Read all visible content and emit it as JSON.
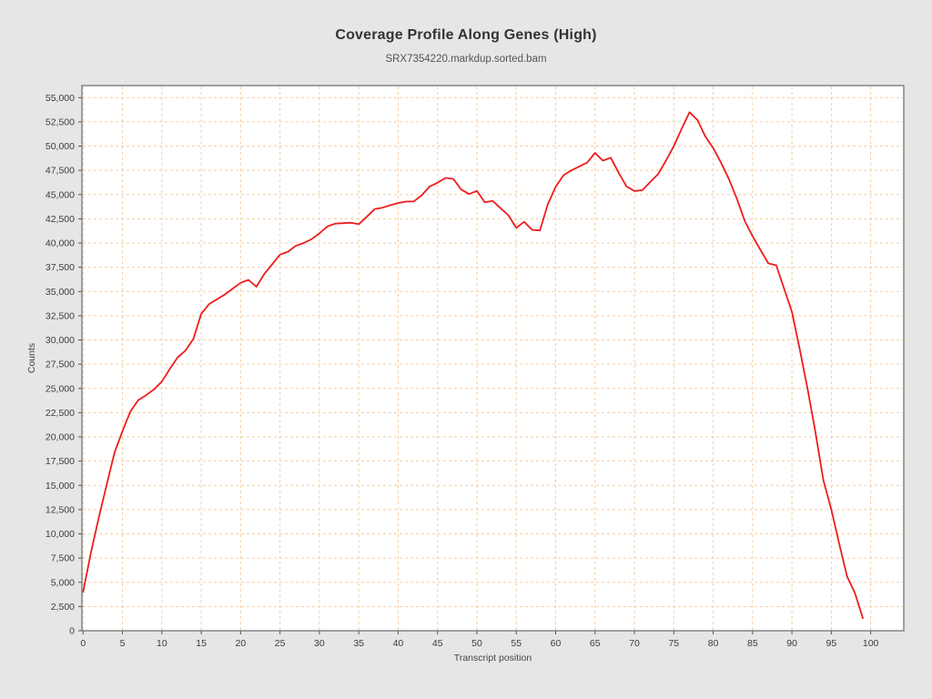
{
  "page": {
    "background": "#e6e6e6"
  },
  "chart_data": {
    "type": "line",
    "title": "Coverage Profile Along Genes (High)",
    "subtitle": "SRX7354220.markdup.sorted.bam",
    "xlabel": "Transcript position",
    "ylabel": "Counts",
    "x": [
      0,
      1,
      2,
      3,
      4,
      5,
      6,
      7,
      8,
      9,
      10,
      11,
      12,
      13,
      14,
      15,
      16,
      17,
      18,
      19,
      20,
      21,
      22,
      23,
      24,
      25,
      26,
      27,
      28,
      29,
      30,
      31,
      32,
      33,
      34,
      35,
      36,
      37,
      38,
      39,
      40,
      41,
      42,
      43,
      44,
      45,
      46,
      47,
      48,
      49,
      50,
      51,
      52,
      53,
      54,
      55,
      56,
      57,
      58,
      59,
      60,
      61,
      62,
      63,
      64,
      65,
      66,
      67,
      68,
      69,
      70,
      71,
      72,
      73,
      74,
      75,
      76,
      77,
      78,
      79,
      80,
      81,
      82,
      83,
      84,
      85,
      86,
      87,
      88,
      89,
      90,
      91,
      92,
      93,
      94,
      95,
      96,
      97,
      98,
      99
    ],
    "series": [
      {
        "name": "coverage",
        "color": "#ee1c1c",
        "values": [
          4000,
          8100,
          11700,
          15100,
          18400,
          20600,
          22600,
          23800,
          24300,
          24900,
          25700,
          27000,
          28200,
          28900,
          30100,
          32700,
          33700,
          34200,
          34700,
          35300,
          35900,
          36200,
          35500,
          36800,
          37800,
          38800,
          39100,
          39700,
          40000,
          40400,
          41000,
          41700,
          42000,
          42050,
          42100,
          41950,
          42700,
          43500,
          43650,
          43900,
          44130,
          44280,
          44300,
          44930,
          45840,
          46220,
          46720,
          46620,
          45530,
          45060,
          45375,
          44200,
          44350,
          43600,
          42870,
          41560,
          42190,
          41370,
          41300,
          44000,
          45800,
          47000,
          47500,
          47900,
          48300,
          49300,
          48500,
          48800,
          47250,
          45840,
          45380,
          45450,
          46300,
          47100,
          48500,
          50000,
          51800,
          53500,
          52700,
          51000,
          49800,
          48300,
          46600,
          44600,
          42300,
          40700,
          39300,
          37900,
          37700,
          35300,
          32900,
          29000,
          24900,
          20400,
          15500,
          12500,
          9000,
          5600,
          3900,
          1300
        ]
      }
    ],
    "xlim": [
      -0.15,
      104.2
    ],
    "ylim": [
      0,
      56250
    ],
    "x_ticks": [
      0,
      5,
      10,
      15,
      20,
      25,
      30,
      35,
      40,
      45,
      50,
      55,
      60,
      65,
      70,
      75,
      80,
      85,
      90,
      95,
      100
    ],
    "y_ticks": [
      0,
      2500,
      5000,
      7500,
      10000,
      12500,
      15000,
      17500,
      20000,
      22500,
      25000,
      27500,
      30000,
      32500,
      35000,
      37500,
      40000,
      42500,
      45000,
      47500,
      50000,
      52500,
      55000
    ],
    "grid": {
      "show": true,
      "color": "#f6cda2",
      "dash": "3 3"
    },
    "legend": null,
    "plot_background": "#ffffff",
    "axis_color": "#7d7d7d",
    "tick_color": "#555555",
    "tick_label_color": "#3c3c3c"
  }
}
